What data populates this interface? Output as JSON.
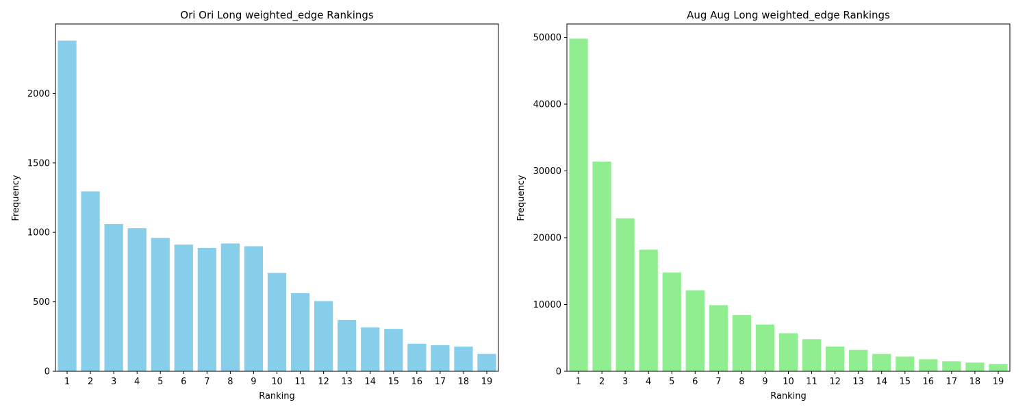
{
  "chart_data": [
    {
      "type": "bar",
      "title": "Ori Ori Long weighted_edge Rankings",
      "xlabel": "Ranking",
      "ylabel": "Frequency",
      "color": "#87ceeb",
      "categories": [
        "1",
        "2",
        "3",
        "4",
        "5",
        "6",
        "7",
        "8",
        "9",
        "10",
        "11",
        "12",
        "13",
        "14",
        "15",
        "16",
        "17",
        "18",
        "19"
      ],
      "values": [
        2380,
        1295,
        1060,
        1030,
        960,
        912,
        888,
        920,
        900,
        708,
        562,
        505,
        370,
        315,
        305,
        198,
        188,
        178,
        125
      ],
      "xlim": [
        0.0,
        19.0
      ],
      "ylim": [
        0,
        2500
      ],
      "yticks": [
        0,
        500,
        1000,
        1500,
        2000
      ],
      "grid": false
    },
    {
      "type": "bar",
      "title": "Aug Aug Long weighted_edge Rankings",
      "xlabel": "Ranking",
      "ylabel": "Frequency",
      "color": "#90ee90",
      "categories": [
        "1",
        "2",
        "3",
        "4",
        "5",
        "6",
        "7",
        "8",
        "9",
        "10",
        "11",
        "12",
        "13",
        "14",
        "15",
        "16",
        "17",
        "18",
        "19"
      ],
      "values": [
        49800,
        31400,
        22900,
        18200,
        14800,
        12100,
        9900,
        8400,
        7000,
        5700,
        4800,
        3700,
        3200,
        2600,
        2200,
        1800,
        1500,
        1300,
        1100
      ],
      "xlim": [
        0.0,
        19.0
      ],
      "ylim": [
        0,
        52000
      ],
      "yticks": [
        0,
        10000,
        20000,
        30000,
        40000,
        50000
      ],
      "grid": false
    }
  ]
}
